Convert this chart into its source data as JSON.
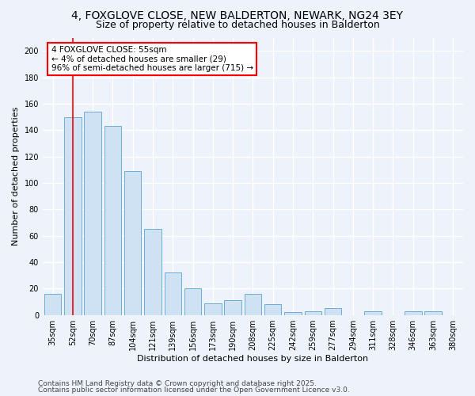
{
  "title": "4, FOXGLOVE CLOSE, NEW BALDERTON, NEWARK, NG24 3EY",
  "subtitle": "Size of property relative to detached houses in Balderton",
  "xlabel": "Distribution of detached houses by size in Balderton",
  "ylabel": "Number of detached properties",
  "categories": [
    "35sqm",
    "52sqm",
    "70sqm",
    "87sqm",
    "104sqm",
    "121sqm",
    "139sqm",
    "156sqm",
    "173sqm",
    "190sqm",
    "208sqm",
    "225sqm",
    "242sqm",
    "259sqm",
    "277sqm",
    "294sqm",
    "311sqm",
    "328sqm",
    "346sqm",
    "363sqm",
    "380sqm"
  ],
  "values": [
    16,
    150,
    154,
    143,
    109,
    65,
    32,
    20,
    9,
    11,
    16,
    8,
    2,
    3,
    5,
    0,
    3,
    0,
    3,
    3,
    0
  ],
  "bar_color": "#cfe2f3",
  "bar_edge_color": "#6aaed6",
  "red_line_x": 1,
  "annotation_line1": "4 FOXGLOVE CLOSE: 55sqm",
  "annotation_line2": "← 4% of detached houses are smaller (29)",
  "annotation_line3": "96% of semi-detached houses are larger (715) →",
  "annotation_box_color": "white",
  "annotation_box_edge": "red",
  "ylim": [
    0,
    210
  ],
  "yticks": [
    0,
    20,
    40,
    60,
    80,
    100,
    120,
    140,
    160,
    180,
    200
  ],
  "footnote1": "Contains HM Land Registry data © Crown copyright and database right 2025.",
  "footnote2": "Contains public sector information licensed under the Open Government Licence v3.0.",
  "background_color": "#eef2fa",
  "grid_color": "#ffffff",
  "title_fontsize": 10,
  "subtitle_fontsize": 9,
  "axis_label_fontsize": 8,
  "tick_fontsize": 7,
  "annotation_fontsize": 7.5,
  "footnote_fontsize": 6.5
}
